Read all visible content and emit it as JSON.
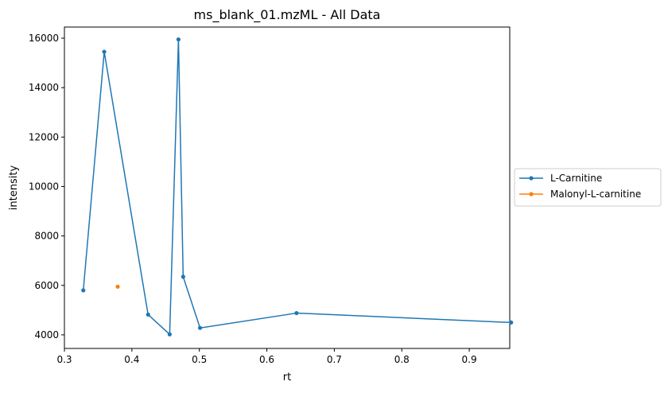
{
  "chart_data": {
    "type": "line",
    "title": "ms_blank_01.mzML - All Data",
    "xlabel": "rt",
    "ylabel": "intensity",
    "xlim": [
      0.3,
      0.96
    ],
    "ylim": [
      3450,
      16450
    ],
    "xticks": [
      0.3,
      0.4,
      0.5,
      0.6,
      0.7,
      0.8,
      0.9
    ],
    "xtick_labels": [
      "0.3",
      "0.4",
      "0.5",
      "0.6",
      "0.7",
      "0.8",
      "0.9"
    ],
    "yticks": [
      4000,
      6000,
      8000,
      10000,
      12000,
      14000,
      16000
    ],
    "ytick_labels": [
      "4000",
      "6000",
      "8000",
      "10000",
      "12000",
      "14000",
      "16000"
    ],
    "grid": false,
    "legend_position": "outside-right",
    "series": [
      {
        "name": "L-Carnitine",
        "color": "#1f77b4",
        "marker": "dot",
        "x": [
          0.328,
          0.359,
          0.424,
          0.456,
          0.469,
          0.476,
          0.501,
          0.644,
          0.962
        ],
        "y": [
          5800,
          15450,
          4820,
          4020,
          15950,
          6350,
          4280,
          4880,
          4500
        ]
      },
      {
        "name": "Malonyl-L-carnitine",
        "color": "#ff7f0e",
        "marker": "dot",
        "x": [
          0.379
        ],
        "y": [
          5950
        ]
      }
    ]
  }
}
